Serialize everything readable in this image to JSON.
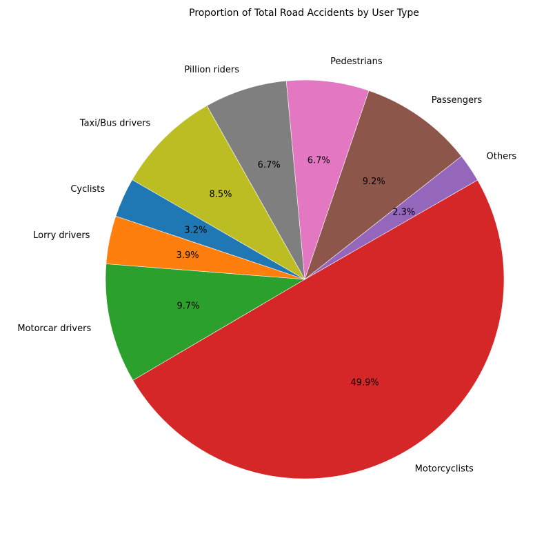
{
  "chart_data": {
    "type": "pie",
    "title": "Proportion of Total Road Accidents by User Type",
    "start_angle_deg": 150,
    "direction": "counterclockwise",
    "slices": [
      {
        "label": "Cyclists",
        "value": 3.2,
        "pct_label": "3.2%",
        "color": "#1f77b4"
      },
      {
        "label": "Lorry drivers",
        "value": 3.9,
        "pct_label": "3.9%",
        "color": "#ff7f0e"
      },
      {
        "label": "Motorcar drivers",
        "value": 9.7,
        "pct_label": "9.7%",
        "color": "#2ca02c"
      },
      {
        "label": "Motorcyclists",
        "value": 49.9,
        "pct_label": "49.9%",
        "color": "#d62728"
      },
      {
        "label": "Others",
        "value": 2.3,
        "pct_label": "2.3%",
        "color": "#9467bd"
      },
      {
        "label": "Passengers",
        "value": 9.2,
        "pct_label": "9.2%",
        "color": "#8c564b"
      },
      {
        "label": "Pedestrians",
        "value": 6.7,
        "pct_label": "6.7%",
        "color": "#e377c2"
      },
      {
        "label": "Pillion riders",
        "value": 6.7,
        "pct_label": "6.7%",
        "color": "#7f7f7f"
      },
      {
        "label": "Taxi/Bus drivers",
        "value": 8.5,
        "pct_label": "8.5%",
        "color": "#bcbd22"
      }
    ]
  }
}
